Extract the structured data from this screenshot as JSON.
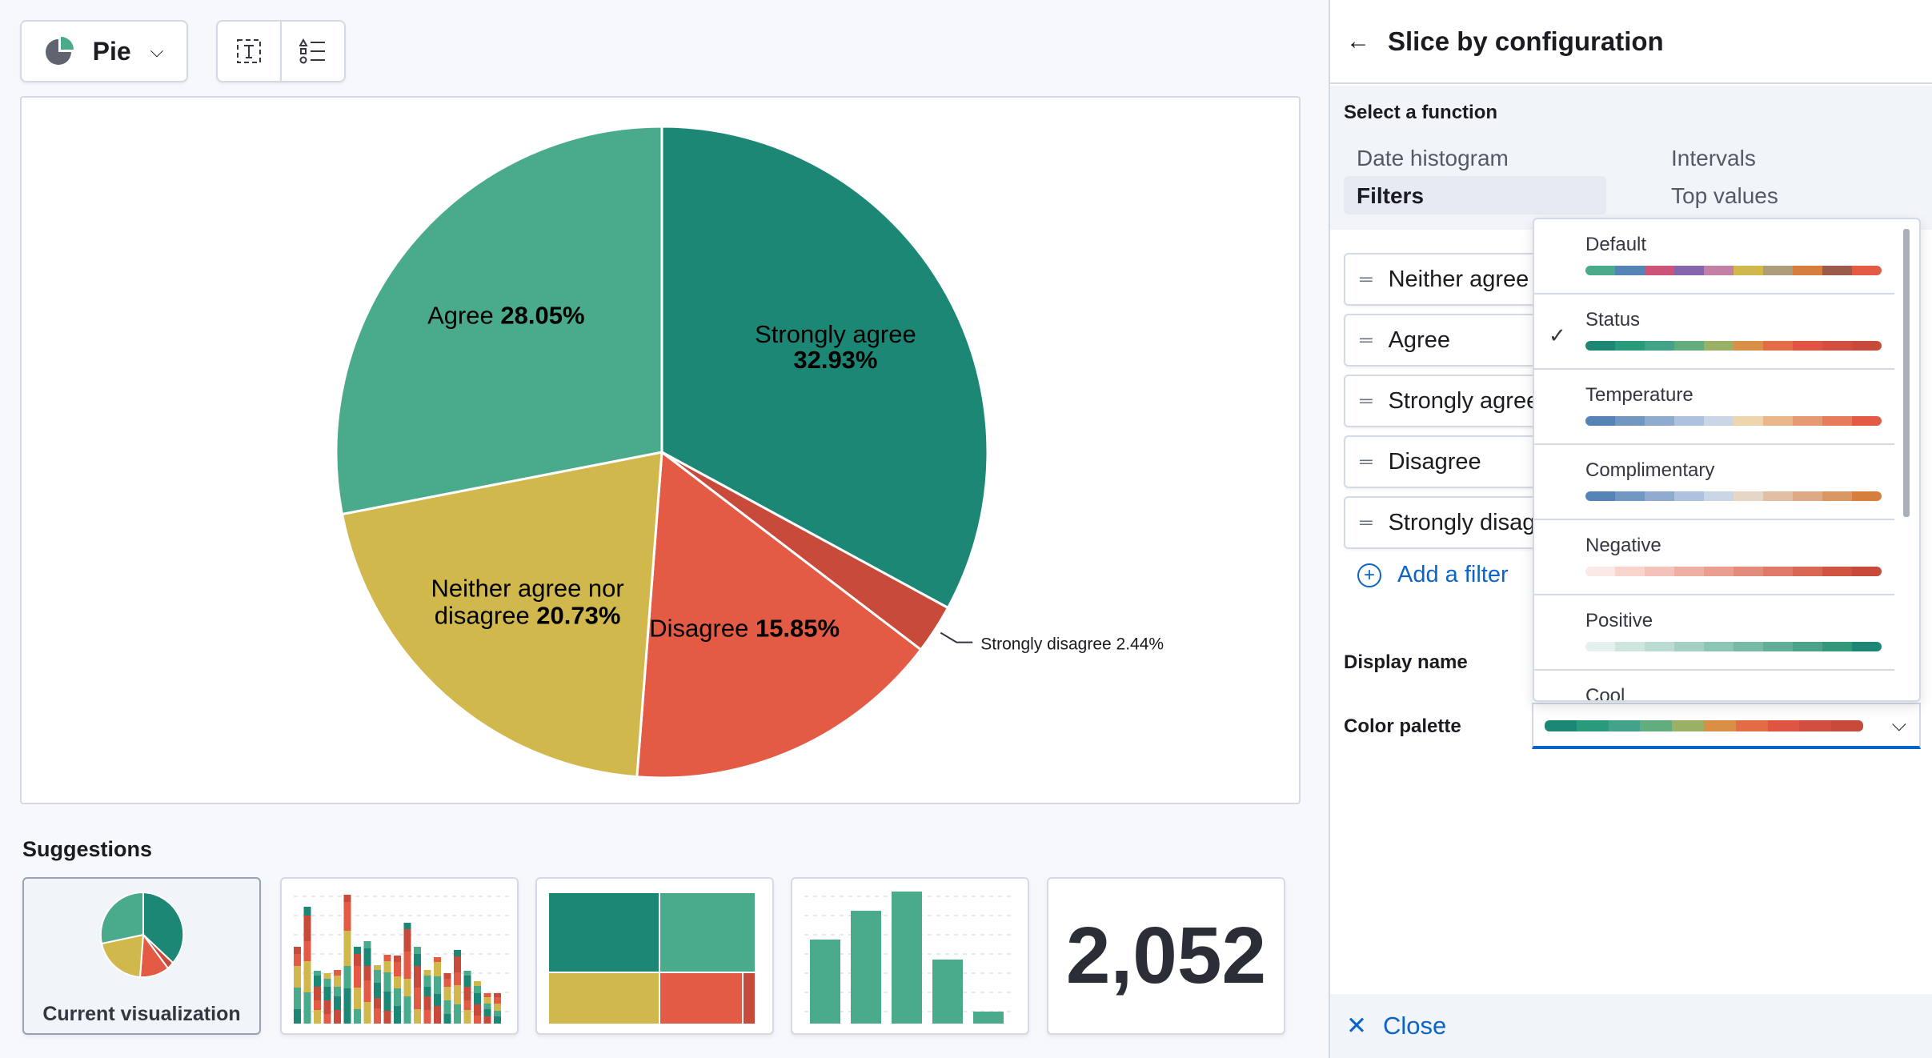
{
  "toolbar": {
    "chart_type": "Pie",
    "icons": [
      "pie-chart-icon",
      "chevron-down-icon",
      "text-field-icon",
      "legend-icon"
    ]
  },
  "chart_data": {
    "type": "pie",
    "slices": [
      {
        "label": "Strongly agree",
        "value": 32.93,
        "color": "#1d8775"
      },
      {
        "label": "Strongly disagree",
        "value": 2.44,
        "color": "#c74a3b"
      },
      {
        "label": "Disagree",
        "value": 15.85,
        "color": "#e35b45"
      },
      {
        "label": "Neither agree nor disagree",
        "value": 20.73,
        "color": "#d1b84d"
      },
      {
        "label": "Agree",
        "value": 28.05,
        "color": "#4aaa8c"
      }
    ],
    "value_labels": [
      "32.93%",
      "2.44%",
      "15.85%",
      "20.73%",
      "28.05%"
    ]
  },
  "suggestions": {
    "title": "Suggestions",
    "current_label": "Current visualization",
    "metric_value": "2,052"
  },
  "side": {
    "title": "Slice by configuration",
    "select_function": "Select a function",
    "functions": [
      "Date histogram",
      "Intervals",
      "Filters",
      "Top values"
    ],
    "filters": [
      "Neither agree nor disagree",
      "Agree",
      "Strongly agree",
      "Disagree",
      "Strongly disagree"
    ],
    "add_filter": "Add a filter",
    "display_name_label": "Display name",
    "color_palette_label": "Color palette",
    "close": "Close"
  },
  "palettes": [
    {
      "name": "Default",
      "selected": false,
      "colors": [
        "#4aaa8c",
        "#5483b5",
        "#cc5479",
        "#8764ae",
        "#c47fa5",
        "#d1b84d",
        "#ad9d7d",
        "#d67f3c",
        "#9c5a4b",
        "#e35b45"
      ]
    },
    {
      "name": "Status",
      "selected": true,
      "colors": [
        "#1d8775",
        "#2a9a7d",
        "#42a28a",
        "#62ad7e",
        "#99b065",
        "#d98f45",
        "#e26c46",
        "#e05542",
        "#d24e3e",
        "#c74a3b"
      ]
    },
    {
      "name": "Temperature",
      "selected": false,
      "colors": [
        "#5483b5",
        "#7198c3",
        "#8fabcf",
        "#adc2dc",
        "#c9d6e6",
        "#eed5ae",
        "#eab68a",
        "#e69a74",
        "#e67c5b",
        "#e35b45"
      ]
    },
    {
      "name": "Complimentary",
      "selected": false,
      "colors": [
        "#5483b5",
        "#7198c3",
        "#8fabcf",
        "#adc2dc",
        "#c9d6e6",
        "#e5d6c8",
        "#e2bfa3",
        "#ddaa83",
        "#d99862",
        "#d67f3c"
      ]
    },
    {
      "name": "Negative",
      "selected": false,
      "colors": [
        "#fbe9e7",
        "#f8d4cd",
        "#f4c2b8",
        "#efb0a3",
        "#ea9e8f",
        "#e48c7c",
        "#e07a68",
        "#d86754",
        "#cf5541",
        "#c74a3b"
      ]
    },
    {
      "name": "Positive",
      "selected": false,
      "colors": [
        "#e5f1ee",
        "#cfe6df",
        "#b9dbd1",
        "#a3d0c3",
        "#8dc5b4",
        "#77baa6",
        "#61af98",
        "#4ba48a",
        "#34997b",
        "#1d8775"
      ]
    },
    {
      "name": "Cool",
      "selected": false,
      "colors": []
    }
  ]
}
